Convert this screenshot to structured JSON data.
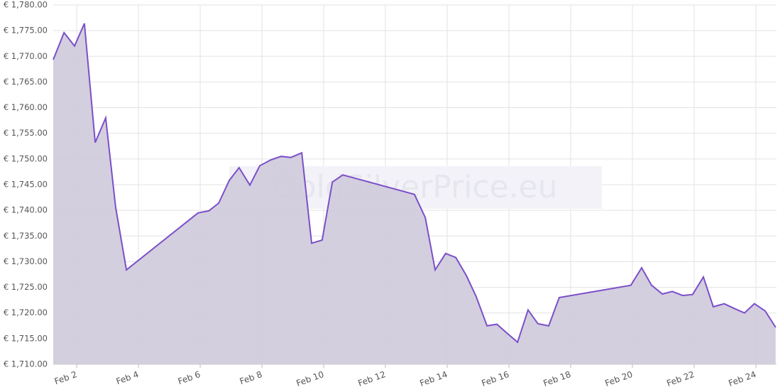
{
  "chart_data": {
    "type": "area",
    "watermark": "GoldSilverPrice.eu",
    "color": "#7b4fc9",
    "fill": "#d1ccdc",
    "grid": true,
    "xlim": [
      1.24,
      24.67
    ],
    "xticks": [
      {
        "value": 2,
        "label": "Feb 2"
      },
      {
        "value": 4,
        "label": "Feb 4"
      },
      {
        "value": 6,
        "label": "Feb 6"
      },
      {
        "value": 8,
        "label": "Feb 8"
      },
      {
        "value": 10,
        "label": "Feb 10"
      },
      {
        "value": 12,
        "label": "Feb 12"
      },
      {
        "value": 14,
        "label": "Feb 14"
      },
      {
        "value": 16,
        "label": "Feb 16"
      },
      {
        "value": 18,
        "label": "Feb 18"
      },
      {
        "value": 20,
        "label": "Feb 20"
      },
      {
        "value": 22,
        "label": "Feb 22"
      },
      {
        "value": 24,
        "label": "Feb 24"
      }
    ],
    "ylim": [
      1710,
      1780
    ],
    "yticks": [
      {
        "value": 1710,
        "label": "€ 1,710.00"
      },
      {
        "value": 1715,
        "label": "€ 1,715.00"
      },
      {
        "value": 1720,
        "label": "€ 1,720.00"
      },
      {
        "value": 1725,
        "label": "€ 1,725.00"
      },
      {
        "value": 1730,
        "label": "€ 1,730.00"
      },
      {
        "value": 1735,
        "label": "€ 1,735.00"
      },
      {
        "value": 1740,
        "label": "€ 1,740.00"
      },
      {
        "value": 1745,
        "label": "€ 1,745.00"
      },
      {
        "value": 1750,
        "label": "€ 1,750.00"
      },
      {
        "value": 1755,
        "label": "€ 1,755.00"
      },
      {
        "value": 1760,
        "label": "€ 1,760.00"
      },
      {
        "value": 1765,
        "label": "€ 1,765.00"
      },
      {
        "value": 1770,
        "label": "€ 1,770.00"
      },
      {
        "value": 1775,
        "label": "€ 1,775.00"
      },
      {
        "value": 1780,
        "label": "€ 1,780.00"
      }
    ],
    "x": [
      1.24,
      1.59,
      1.93,
      2.25,
      2.6,
      2.94,
      3.26,
      3.61,
      5.93,
      6.28,
      6.6,
      6.94,
      7.26,
      7.61,
      7.93,
      8.28,
      8.62,
      8.94,
      9.29,
      9.61,
      9.95,
      10.28,
      10.62,
      12.94,
      13.29,
      13.61,
      13.95,
      14.28,
      14.62,
      14.94,
      15.29,
      15.61,
      15.95,
      16.28,
      16.62,
      16.94,
      17.29,
      17.63,
      19.95,
      20.3,
      20.62,
      20.97,
      21.29,
      21.63,
      21.95,
      22.3,
      22.62,
      22.97,
      23.29,
      23.63,
      23.95,
      24.3,
      24.64
    ],
    "values": [
      1769.35,
      1774.6,
      1772.0,
      1776.4,
      1753.2,
      1758.0,
      1740.6,
      1728.4,
      1739.5,
      1739.9,
      1741.4,
      1745.8,
      1748.3,
      1744.9,
      1748.7,
      1749.8,
      1750.5,
      1750.3,
      1751.2,
      1733.6,
      1734.2,
      1745.5,
      1746.9,
      1743.1,
      1738.6,
      1728.4,
      1731.6,
      1730.8,
      1727.3,
      1723.2,
      1717.5,
      1717.8,
      1716.0,
      1714.3,
      1720.6,
      1717.9,
      1717.5,
      1723.0,
      1725.4,
      1728.8,
      1725.4,
      1723.7,
      1724.2,
      1723.4,
      1723.6,
      1727.0,
      1721.2,
      1721.8,
      1720.9,
      1720.0,
      1721.8,
      1720.4,
      1717.2
    ]
  }
}
